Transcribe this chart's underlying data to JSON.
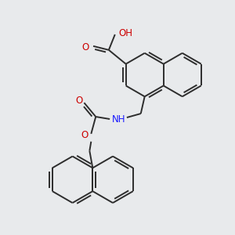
{
  "background_color": "#e8eaec",
  "bond_color": "#2d2d2d",
  "oxygen_color": "#cc0000",
  "nitrogen_color": "#1a1aff",
  "line_width": 1.4,
  "figsize": [
    3.0,
    3.0
  ],
  "dpi": 100,
  "cooh_o_label": "O",
  "cooh_oh_label": "OH",
  "nh_label": "NH",
  "carb_o_label": "O",
  "ester_o_label": "O"
}
